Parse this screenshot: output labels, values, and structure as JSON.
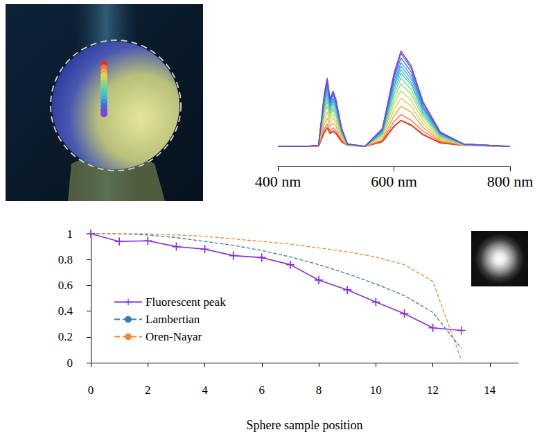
{
  "chart_data": [
    {
      "type": "line",
      "x": [
        400,
        450,
        470,
        480,
        485,
        490,
        495,
        500,
        510,
        520,
        550,
        580,
        600,
        612,
        630,
        650,
        680,
        720,
        800
      ],
      "series": [
        {
          "color": "#7f3fe0",
          "values": [
            0.17,
            0.17,
            0.18,
            0.62,
            0.75,
            0.57,
            0.64,
            0.57,
            0.32,
            0.19,
            0.17,
            0.32,
            0.79,
            0.98,
            0.85,
            0.55,
            0.29,
            0.19,
            0.17
          ]
        },
        {
          "color": "#5a55e8",
          "values": [
            0.17,
            0.17,
            0.18,
            0.61,
            0.73,
            0.56,
            0.63,
            0.56,
            0.32,
            0.19,
            0.17,
            0.32,
            0.77,
            0.96,
            0.83,
            0.54,
            0.29,
            0.19,
            0.17
          ]
        },
        {
          "color": "#3f6fe8",
          "values": [
            0.17,
            0.17,
            0.18,
            0.59,
            0.71,
            0.54,
            0.61,
            0.54,
            0.31,
            0.19,
            0.17,
            0.31,
            0.75,
            0.92,
            0.8,
            0.52,
            0.28,
            0.19,
            0.17
          ]
        },
        {
          "color": "#3a8fe6",
          "values": [
            0.17,
            0.17,
            0.18,
            0.57,
            0.68,
            0.52,
            0.58,
            0.52,
            0.3,
            0.19,
            0.17,
            0.3,
            0.72,
            0.88,
            0.77,
            0.5,
            0.28,
            0.19,
            0.17
          ]
        },
        {
          "color": "#40aee0",
          "values": [
            0.17,
            0.17,
            0.18,
            0.55,
            0.66,
            0.51,
            0.56,
            0.51,
            0.3,
            0.19,
            0.17,
            0.3,
            0.69,
            0.85,
            0.74,
            0.49,
            0.27,
            0.19,
            0.17
          ]
        },
        {
          "color": "#45c4d0",
          "values": [
            0.17,
            0.17,
            0.18,
            0.53,
            0.63,
            0.49,
            0.55,
            0.49,
            0.29,
            0.19,
            0.17,
            0.29,
            0.67,
            0.82,
            0.71,
            0.47,
            0.27,
            0.19,
            0.17
          ]
        },
        {
          "color": "#50d0b0",
          "values": [
            0.17,
            0.17,
            0.18,
            0.51,
            0.61,
            0.47,
            0.53,
            0.47,
            0.28,
            0.19,
            0.17,
            0.28,
            0.64,
            0.79,
            0.69,
            0.46,
            0.26,
            0.19,
            0.17
          ]
        },
        {
          "color": "#70d890",
          "values": [
            0.17,
            0.17,
            0.18,
            0.49,
            0.58,
            0.45,
            0.5,
            0.45,
            0.28,
            0.18,
            0.17,
            0.28,
            0.61,
            0.75,
            0.65,
            0.44,
            0.26,
            0.18,
            0.17
          ]
        },
        {
          "color": "#9ad870",
          "values": [
            0.17,
            0.17,
            0.18,
            0.46,
            0.55,
            0.43,
            0.48,
            0.43,
            0.27,
            0.18,
            0.17,
            0.27,
            0.57,
            0.7,
            0.61,
            0.42,
            0.25,
            0.18,
            0.17
          ]
        },
        {
          "color": "#c8d860",
          "values": [
            0.17,
            0.17,
            0.18,
            0.43,
            0.51,
            0.4,
            0.44,
            0.4,
            0.26,
            0.18,
            0.17,
            0.26,
            0.53,
            0.64,
            0.56,
            0.39,
            0.24,
            0.18,
            0.17
          ]
        },
        {
          "color": "#f0c850",
          "values": [
            0.17,
            0.17,
            0.18,
            0.4,
            0.46,
            0.37,
            0.41,
            0.37,
            0.25,
            0.18,
            0.17,
            0.25,
            0.48,
            0.58,
            0.51,
            0.36,
            0.23,
            0.18,
            0.17
          ]
        },
        {
          "color": "#f7a040",
          "values": [
            0.17,
            0.17,
            0.17,
            0.36,
            0.41,
            0.34,
            0.37,
            0.34,
            0.23,
            0.18,
            0.17,
            0.23,
            0.43,
            0.51,
            0.46,
            0.33,
            0.22,
            0.18,
            0.17
          ]
        },
        {
          "color": "#f27838",
          "values": [
            0.17,
            0.17,
            0.17,
            0.32,
            0.36,
            0.3,
            0.33,
            0.3,
            0.22,
            0.18,
            0.17,
            0.22,
            0.38,
            0.44,
            0.39,
            0.3,
            0.21,
            0.18,
            0.17
          ]
        },
        {
          "color": "#e83020",
          "values": [
            0.17,
            0.17,
            0.17,
            0.29,
            0.33,
            0.28,
            0.3,
            0.28,
            0.21,
            0.18,
            0.17,
            0.21,
            0.34,
            0.39,
            0.35,
            0.27,
            0.2,
            0.18,
            0.17
          ]
        }
      ],
      "xlim": [
        400,
        800
      ],
      "xticks": [
        {
          "value": 400,
          "label": "400 nm"
        },
        {
          "value": 600,
          "label": "600 nm"
        },
        {
          "value": 800,
          "label": "800 nm"
        }
      ],
      "ylim": [
        0,
        1
      ],
      "tick_labels": "x",
      "grid": false
    },
    {
      "type": "line",
      "x": [
        0,
        1,
        2,
        3,
        4,
        5,
        6,
        7,
        8,
        9,
        10,
        11,
        12,
        13
      ],
      "series": [
        {
          "name": "Fluorescent peak",
          "color": "#8b2be0",
          "marker": "plus",
          "line_style": "solid",
          "values": [
            1,
            0.94,
            0.945,
            0.9,
            0.88,
            0.83,
            0.815,
            0.76,
            0.64,
            0.565,
            0.47,
            0.38,
            0.27,
            0.25
          ]
        },
        {
          "name": "Lambertian",
          "color": "#2f7ab8",
          "line_style": "dashed",
          "values": [
            1,
            1,
            0.99,
            0.97,
            0.94,
            0.91,
            0.87,
            0.82,
            0.76,
            0.69,
            0.61,
            0.52,
            0.39,
            0.11
          ]
        },
        {
          "name": "Oren-Nayar",
          "color": "#f5862a",
          "line_style": "dashed",
          "values": [
            1,
            1,
            1,
            0.99,
            0.98,
            0.96,
            0.94,
            0.92,
            0.89,
            0.86,
            0.82,
            0.76,
            0.63,
            0.02
          ]
        }
      ],
      "x_label": "Sphere sample position",
      "xlim": [
        0,
        15
      ],
      "xticks": [
        0,
        2,
        4,
        6,
        8,
        10,
        12,
        14
      ],
      "ylim": [
        0,
        1
      ],
      "yticks": [
        0,
        0.2,
        0.4,
        0.6,
        0.8,
        1
      ],
      "legend": "lower left",
      "grid": false
    }
  ]
}
